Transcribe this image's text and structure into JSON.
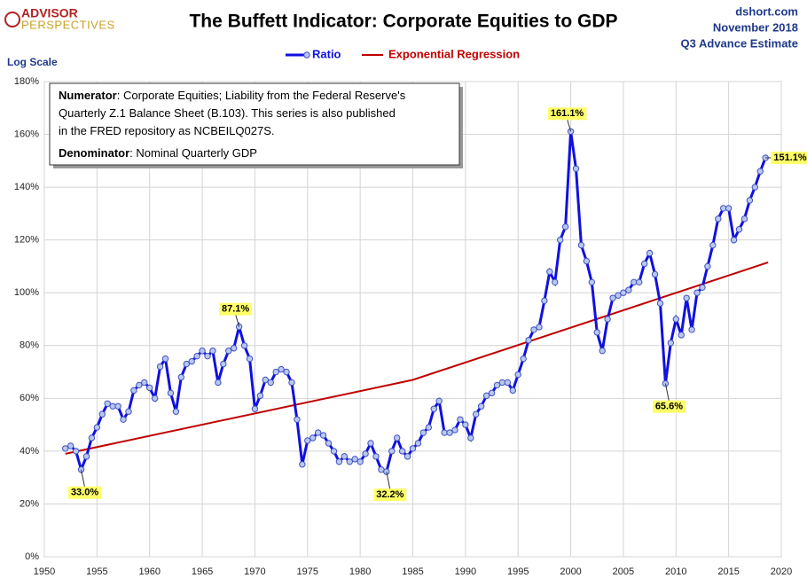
{
  "chart_data": {
    "type": "line",
    "title": "The Buffett Indicator: Corporate Equities to GDP",
    "logo": [
      "ADVISOR",
      "PERSPECTIVES"
    ],
    "source": [
      "dshort.com",
      "November 2018",
      "Q3 Advance Estimate"
    ],
    "scale_note": "Log Scale",
    "notes": [
      {
        "bold": "Numerator",
        "text": ": Corporate Equities; Liability from the Federal Reserve's"
      },
      {
        "text": "Quarterly Z.1 Balance Sheet (B.103). This series is also published"
      },
      {
        "text": "in the FRED repository  as NCBEILQ027S."
      },
      {
        "bold": "Denominator",
        "text": ": Nominal Quarterly GDP"
      }
    ],
    "x": [
      1952,
      1952.5,
      1953,
      1953.5,
      1954,
      1954.5,
      1955,
      1955.5,
      1956,
      1956.5,
      1957,
      1957.5,
      1958,
      1958.5,
      1959,
      1959.5,
      1960,
      1960.5,
      1961,
      1961.5,
      1962,
      1962.5,
      1963,
      1963.5,
      1964,
      1964.5,
      1965,
      1965.5,
      1966,
      1966.5,
      1967,
      1967.5,
      1968,
      1968.5,
      1969,
      1969.5,
      1970,
      1970.5,
      1971,
      1971.5,
      1972,
      1972.5,
      1973,
      1973.5,
      1974,
      1974.5,
      1975,
      1975.5,
      1976,
      1976.5,
      1977,
      1977.5,
      1978,
      1978.5,
      1979,
      1979.5,
      1980,
      1980.5,
      1981,
      1981.5,
      1982,
      1982.5,
      1983,
      1983.5,
      1984,
      1984.5,
      1985,
      1985.5,
      1986,
      1986.5,
      1987,
      1987.5,
      1988,
      1988.5,
      1989,
      1989.5,
      1990,
      1990.5,
      1991,
      1991.5,
      1992,
      1992.5,
      1993,
      1993.5,
      1994,
      1994.5,
      1995,
      1995.5,
      1996,
      1996.5,
      1997,
      1997.5,
      1998,
      1998.5,
      1999,
      1999.5,
      2000,
      2000.5,
      2001,
      2001.5,
      2002,
      2002.5,
      2003,
      2003.5,
      2004,
      2004.5,
      2005,
      2005.5,
      2006,
      2006.5,
      2007,
      2007.5,
      2008,
      2008.5,
      2009,
      2009.5,
      2010,
      2010.5,
      2011,
      2011.5,
      2012,
      2012.5,
      2013,
      2013.5,
      2014,
      2014.5,
      2015,
      2015.5,
      2016,
      2016.5,
      2017,
      2017.5,
      2018,
      2018.5
    ],
    "series": [
      {
        "name": "Ratio",
        "color": "#1010e0",
        "values": [
          41,
          42,
          40,
          33.0,
          38,
          45,
          49,
          54,
          58,
          57,
          57,
          52,
          55,
          63,
          65,
          66,
          64,
          60,
          72,
          75,
          62,
          55,
          68,
          73,
          74,
          76,
          78,
          76,
          78,
          66,
          73,
          78,
          79,
          87.1,
          80,
          75,
          56,
          61,
          67,
          66,
          70,
          71,
          70,
          66,
          52,
          35,
          44,
          45,
          47,
          46,
          43,
          40,
          36,
          38,
          36,
          37,
          36,
          39,
          43,
          38,
          33,
          32.2,
          40,
          45,
          40,
          38,
          41,
          43,
          47,
          49,
          56,
          59,
          47,
          47,
          48,
          52,
          50,
          45,
          54,
          57,
          61,
          62,
          65,
          66,
          66,
          63,
          69,
          75,
          82,
          86,
          87,
          97,
          108,
          104,
          120,
          125,
          161.1,
          147,
          118,
          112,
          104,
          85,
          78,
          90,
          98,
          99,
          100,
          101,
          104,
          104,
          111,
          115,
          107,
          96,
          65.6,
          81,
          90,
          84,
          98,
          86,
          100,
          102,
          110,
          118,
          128,
          132,
          132,
          120,
          124,
          128,
          135,
          140,
          146,
          151.1
        ],
        "value_labels": [
          null,
          null,
          null,
          "33.0%",
          null,
          null,
          null,
          null,
          null,
          null,
          null,
          null,
          null,
          null,
          null,
          null,
          null,
          null,
          null,
          null,
          null,
          null,
          null,
          null,
          null,
          null,
          null,
          null,
          null,
          null,
          null,
          null,
          null,
          "87.1%",
          null,
          null,
          null,
          null,
          null,
          null,
          null,
          null,
          null,
          null,
          null,
          null,
          null,
          null,
          null,
          null,
          null,
          null,
          null,
          null,
          null,
          null,
          null,
          null,
          null,
          null,
          null,
          "32.2%",
          null,
          null,
          null,
          null,
          null,
          null,
          null,
          null,
          null,
          null,
          null,
          null,
          null,
          null,
          null,
          null,
          null,
          null,
          null,
          null,
          null,
          null,
          null,
          null,
          null,
          null,
          null,
          null,
          null,
          null,
          null,
          null,
          null,
          null,
          "161.1%",
          null,
          null,
          null,
          null,
          null,
          null,
          null,
          null,
          null,
          null,
          null,
          null,
          null,
          null,
          null,
          null,
          null,
          "65.6%",
          null,
          null,
          null,
          null,
          null,
          null,
          null,
          null,
          null,
          null,
          null,
          null,
          null,
          null,
          null,
          null,
          null,
          null,
          "151.1%"
        ]
      },
      {
        "name": "Exponential Regression",
        "color": "#c00000",
        "x": [
          1952,
          1985,
          2018.75
        ],
        "values": [
          39,
          67,
          111.5
        ]
      }
    ],
    "xlim": [
      1950,
      2020
    ],
    "xticks": [
      1950,
      1955,
      1960,
      1965,
      1970,
      1975,
      1980,
      1985,
      1990,
      1995,
      2000,
      2005,
      2010,
      2015,
      2020
    ],
    "ylim": [
      0,
      180
    ],
    "yticks": [
      {
        "value": 0,
        "label": "0%"
      },
      {
        "value": 20,
        "label": "20%"
      },
      {
        "value": 40,
        "label": "40%"
      },
      {
        "value": 60,
        "label": "60%"
      },
      {
        "value": 80,
        "label": "80%"
      },
      {
        "value": 100,
        "label": "100%"
      },
      {
        "value": 120,
        "label": "120%"
      },
      {
        "value": 140,
        "label": "140%"
      },
      {
        "value": 160,
        "label": "160%"
      },
      {
        "value": 180,
        "label": "180%"
      }
    ],
    "grid": true,
    "legend": "top"
  }
}
